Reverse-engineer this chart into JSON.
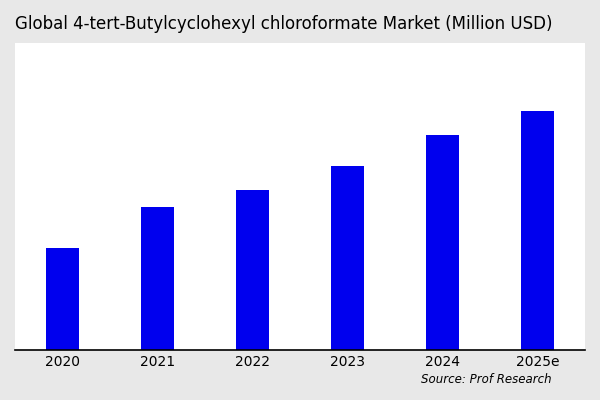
{
  "title": "Global 4-tert-Butylcyclohexyl chloroformate Market (Million USD)",
  "categories": [
    "2020",
    "2021",
    "2022",
    "2023",
    "2024",
    "2025e"
  ],
  "values": [
    30,
    42,
    47,
    54,
    63,
    70
  ],
  "bar_color": "#0000EE",
  "outer_background_color": "#e8e8e8",
  "plot_background_color": "#ffffff",
  "title_fontsize": 12,
  "tick_fontsize": 10,
  "source_text": "Source: Prof Research",
  "ylim": [
    0,
    90
  ],
  "bar_width": 0.35
}
